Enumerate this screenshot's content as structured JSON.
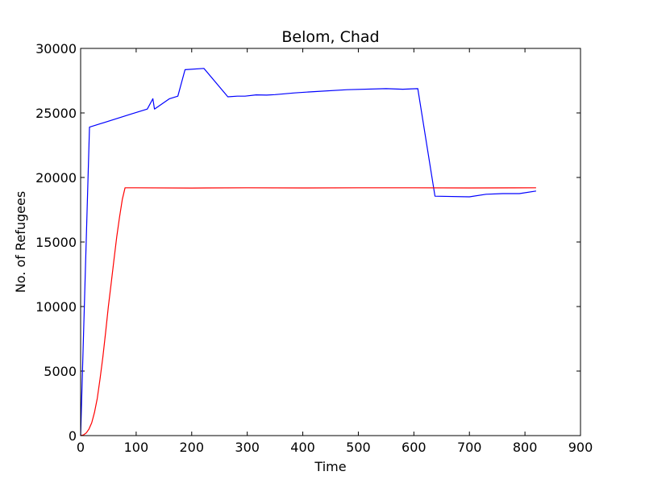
{
  "chart_data": {
    "type": "line",
    "title": "Belom, Chad",
    "xlabel": "Time",
    "ylabel": "No. of Refugees",
    "xlim": [
      0,
      900
    ],
    "ylim": [
      0,
      30000
    ],
    "xticks": [
      0,
      100,
      200,
      300,
      400,
      500,
      600,
      700,
      800,
      900
    ],
    "yticks": [
      0,
      5000,
      10000,
      15000,
      20000,
      25000,
      30000
    ],
    "grid": false,
    "legend": "none",
    "series": [
      {
        "color": "#0000ff",
        "points": [
          [
            0,
            0
          ],
          [
            16,
            23900
          ],
          [
            90,
            24900
          ],
          [
            120,
            25300
          ],
          [
            130,
            26100
          ],
          [
            133,
            25300
          ],
          [
            160,
            26100
          ],
          [
            175,
            26300
          ],
          [
            188,
            28350
          ],
          [
            222,
            28450
          ],
          [
            265,
            26250
          ],
          [
            282,
            26300
          ],
          [
            296,
            26300
          ],
          [
            316,
            26400
          ],
          [
            335,
            26380
          ],
          [
            350,
            26420
          ],
          [
            385,
            26550
          ],
          [
            420,
            26650
          ],
          [
            480,
            26800
          ],
          [
            550,
            26880
          ],
          [
            580,
            26840
          ],
          [
            607,
            26880
          ],
          [
            638,
            18550
          ],
          [
            700,
            18500
          ],
          [
            730,
            18700
          ],
          [
            760,
            18750
          ],
          [
            790,
            18750
          ],
          [
            820,
            18950
          ]
        ]
      },
      {
        "color": "#ff0000",
        "points": [
          [
            0,
            0
          ],
          [
            5,
            50
          ],
          [
            10,
            200
          ],
          [
            15,
            500
          ],
          [
            20,
            1000
          ],
          [
            25,
            1800
          ],
          [
            30,
            2900
          ],
          [
            35,
            4400
          ],
          [
            40,
            6100
          ],
          [
            45,
            8000
          ],
          [
            50,
            10000
          ],
          [
            55,
            11800
          ],
          [
            60,
            13600
          ],
          [
            65,
            15400
          ],
          [
            70,
            16900
          ],
          [
            75,
            18300
          ],
          [
            80,
            19200
          ],
          [
            100,
            19200
          ],
          [
            200,
            19180
          ],
          [
            300,
            19200
          ],
          [
            400,
            19190
          ],
          [
            500,
            19200
          ],
          [
            600,
            19200
          ],
          [
            700,
            19190
          ],
          [
            820,
            19200
          ]
        ]
      }
    ]
  }
}
